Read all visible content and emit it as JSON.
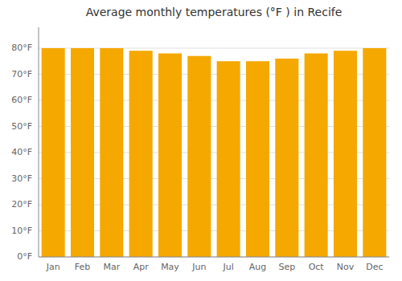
{
  "chart_data": {
    "type": "bar",
    "title": "Average monthly temperatures (°F ) in Recife",
    "categories": [
      "Jan",
      "Feb",
      "Mar",
      "Apr",
      "May",
      "Jun",
      "Jul",
      "Aug",
      "Sep",
      "Oct",
      "Nov",
      "Dec"
    ],
    "values": [
      80,
      80,
      80,
      79,
      78,
      77,
      75,
      75,
      76,
      78,
      79,
      80
    ],
    "color": "#F5A800",
    "ylim": [
      0,
      88
    ],
    "yticks": [
      {
        "value": 0,
        "label": "0°F"
      },
      {
        "value": 10,
        "label": "10°F"
      },
      {
        "value": 20,
        "label": "20°F"
      },
      {
        "value": 30,
        "label": "30°F"
      },
      {
        "value": 40,
        "label": "40°F"
      },
      {
        "value": 50,
        "label": "50°F"
      },
      {
        "value": 60,
        "label": "60°F"
      },
      {
        "value": 70,
        "label": "70°F"
      },
      {
        "value": 80,
        "label": "80°F"
      }
    ],
    "grid": true
  }
}
